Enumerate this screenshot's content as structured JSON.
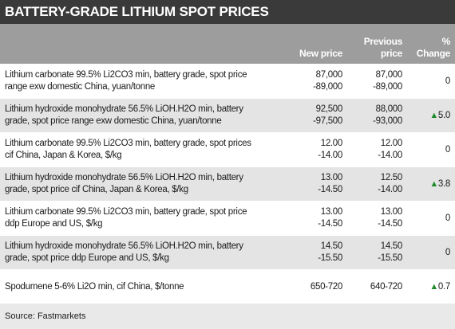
{
  "title": "BATTERY-GRADE LITHIUM SPOT PRICES",
  "table": {
    "header": {
      "new_price": "New price",
      "previous_price": [
        "Previous",
        "price"
      ],
      "change": [
        "%",
        "Change"
      ]
    },
    "rows": [
      {
        "description": [
          "Lithium carbonate 99.5% Li2CO3 min, battery grade, spot price",
          "range exw domestic China, yuan/tonne"
        ],
        "new_price": [
          "87,000",
          "-89,000"
        ],
        "previous_price": [
          "87,000",
          "-89,000"
        ],
        "change": "0"
      },
      {
        "description": [
          "Lithium hydroxide monohydrate 56.5% LiOH.H2O min, battery",
          "grade, spot price range exw domestic China, yuan/tonne"
        ],
        "new_price": [
          "92,500",
          "-97,500"
        ],
        "previous_price": [
          "88,000",
          "-93,000"
        ],
        "change": "5.0"
      },
      {
        "description": [
          "Lithium carbonate 99.5% Li2CO3 min, battery grade, spot prices",
          "cif China, Japan & Korea, $/kg"
        ],
        "new_price": [
          "12.00",
          "-14.00"
        ],
        "previous_price": [
          "12.00",
          "-14.00"
        ],
        "change": "0"
      },
      {
        "description": [
          "Lithium hydroxide monohydrate 56.5% LiOH.H2O min, battery",
          "grade, spot price cif China, Japan & Korea, $/kg"
        ],
        "new_price": [
          "13.00",
          "-14.50"
        ],
        "previous_price": [
          "12.50",
          "-14.00"
        ],
        "change": "3.8"
      },
      {
        "description": [
          "Lithium carbonate 99.5% Li2CO3 min, battery grade, spot price",
          "ddp Europe and US, $/kg"
        ],
        "new_price": [
          "13.00",
          "-14.50"
        ],
        "previous_price": [
          "13.00",
          "-14.50"
        ],
        "change": "0"
      },
      {
        "description": [
          "Lithium hydroxide monohydrate 56.5% LiOH.H2O min, battery",
          "grade, spot price ddp Europe and US, $/kg"
        ],
        "new_price": [
          "14.50",
          "-15.50"
        ],
        "previous_price": [
          "14.50",
          "-15.50"
        ],
        "change": "0"
      },
      {
        "description": [
          "Spodumene 5-6% Li2O min, cif China, $/tonne"
        ],
        "new_price": [
          "650-720"
        ],
        "previous_price": [
          "640-720"
        ],
        "change": "0.7"
      }
    ]
  },
  "source": "Source: Fastmarkets"
}
